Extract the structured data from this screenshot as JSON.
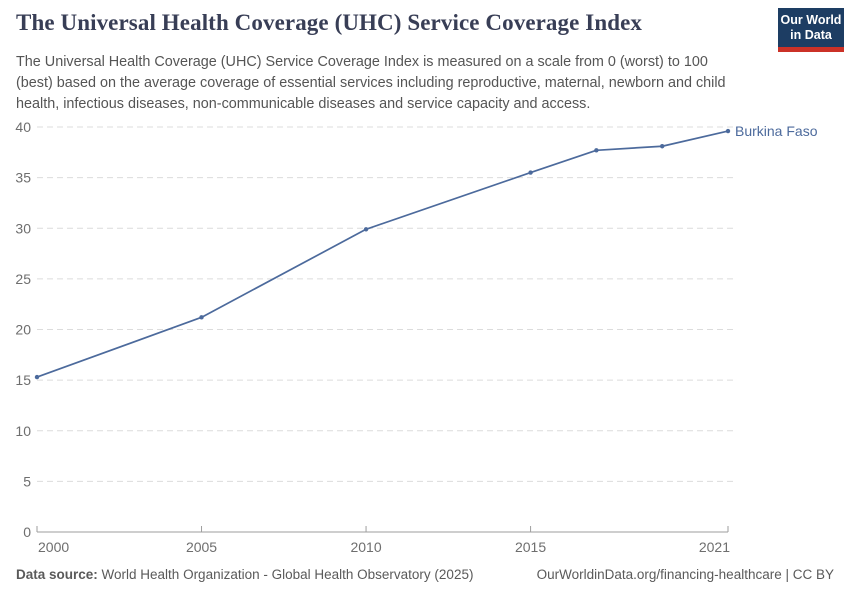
{
  "header": {
    "title": "The Universal Health Coverage (UHC) Service Coverage Index",
    "subtitle": "The Universal Health Coverage (UHC) Service Coverage Index is measured on a scale from 0 (worst) to 100 (best) based on the average coverage of essential services including reproductive, maternal, newborn and child health, infectious diseases, non-communicable diseases and service capacity and access.",
    "logo": {
      "line1": "Our World",
      "line2": "in Data",
      "bg_color": "#1d3d63",
      "accent_color": "#cb3127"
    }
  },
  "chart_data": {
    "type": "line",
    "title": "The Universal Health Coverage (UHC) Service Coverage Index",
    "entity": "Burkina Faso",
    "series": [
      {
        "name": "Burkina Faso",
        "color": "#4c6a9c",
        "x": [
          2000,
          2005,
          2010,
          2015,
          2017,
          2019,
          2021
        ],
        "values": [
          15.3,
          21.2,
          29.9,
          35.5,
          37.7,
          38.1,
          39.6
        ]
      }
    ],
    "xlim": [
      2000,
      2021
    ],
    "ylim": [
      0,
      40
    ],
    "xticks": [
      "2000",
      "2005",
      "2010",
      "2015",
      "2021"
    ],
    "xtick_values": [
      2000,
      2005,
      2010,
      2015,
      2021
    ],
    "yticks": [
      "0",
      "5",
      "10",
      "15",
      "20",
      "25",
      "30",
      "35",
      "40"
    ],
    "ytick_values": [
      0,
      5,
      10,
      15,
      20,
      25,
      30,
      35,
      40
    ],
    "grid": "horizontal-dashed",
    "legend_position": "line-end-label",
    "colors": {
      "grid": "#dcdcdc",
      "axis": "#9e9e9e",
      "tick_label": "#6e6e6e"
    }
  },
  "footer": {
    "datasource_label": "Data source:",
    "datasource_text": " World Health Organization - Global Health Observatory (2025)",
    "right_text": "OurWorldinData.org/financing-healthcare | CC BY"
  }
}
